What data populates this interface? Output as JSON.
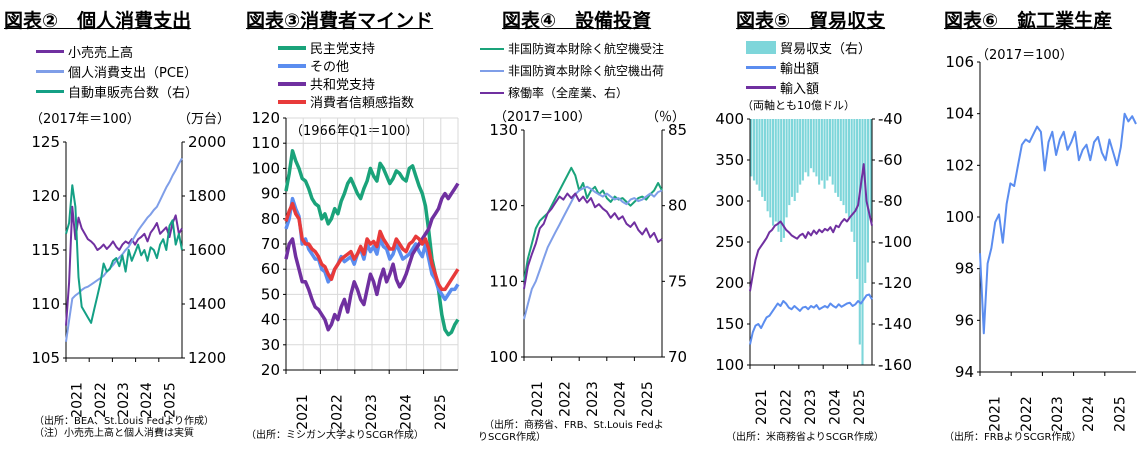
{
  "panels": [
    {
      "title": "図表②　個人消費支出",
      "source_lines": [
        "（出所：BEA、St.Louis Fedより作成）",
        "（注）小売売上高と個人消費は実質"
      ],
      "unit_left": "（2017年＝100）",
      "unit_right": "（万台）",
      "chart_data": {
        "type": "line",
        "x_labels": [
          "2021",
          "2022",
          "2023",
          "2024",
          "2025"
        ],
        "ylim_left": [
          105,
          125
        ],
        "yticks_left": [
          "105",
          "110",
          "115",
          "120",
          "125"
        ],
        "ylim_right": [
          1200,
          2000
        ],
        "yticks_right": [
          "1200",
          "1400",
          "1600",
          "1800",
          "2000"
        ],
        "series": [
          {
            "name": "小売売上高",
            "color": "#7030A0",
            "axis": "left",
            "values": [
              108,
              112,
              119,
              116,
              118,
              117,
              116.5,
              116,
              115.8,
              115.5,
              115,
              115.2,
              115.5,
              115.1,
              115.4,
              115.8,
              115.3,
              115,
              115.5,
              115.8,
              115.6,
              116,
              115.5,
              116,
              116.2,
              116.5,
              115.8,
              116.6,
              117,
              117.5,
              116.5,
              116.8,
              117.1,
              116.2,
              117.5,
              118.2,
              116.5,
              117
            ]
          },
          {
            "name": "個人消費支出（PCE）",
            "color": "#7F9EE8",
            "axis": "left",
            "values": [
              106.5,
              108.5,
              110.5,
              110.8,
              111,
              111.3,
              111.5,
              111.6,
              111.8,
              112,
              112.2,
              112.4,
              112.6,
              113,
              113.3,
              113.6,
              114,
              114.3,
              114.6,
              115,
              115.3,
              115.8,
              116.3,
              116.8,
              117.2,
              117.6,
              118,
              118.3,
              118.7,
              119,
              119.6,
              120.2,
              120.8,
              121.3,
              121.9,
              122.4,
              123,
              123.5
            ]
          },
          {
            "name": "自動車販売台数（右）",
            "color": "#14A085",
            "axis": "right",
            "values": [
              1660,
              1700,
              1840,
              1760,
              1500,
              1390,
              1370,
              1350,
              1330,
              1380,
              1430,
              1480,
              1550,
              1520,
              1530,
              1560,
              1570,
              1540,
              1580,
              1520,
              1600,
              1560,
              1590,
              1620,
              1580,
              1600,
              1560,
              1610,
              1600,
              1570,
              1620,
              1640,
              1600,
              1690,
              1710,
              1620,
              1660,
              1600
            ]
          }
        ]
      }
    },
    {
      "title": "図表③消費者マインド",
      "source_lines": [
        "（出所：ミシガン大学よりSCGR作成）"
      ],
      "unit_left": "（1966年Q1＝100）",
      "chart_data": {
        "type": "line",
        "x_labels": [
          "2021",
          "2022",
          "2023",
          "2024",
          "2025"
        ],
        "ylim_left": [
          20,
          120
        ],
        "yticks_left": [
          "20",
          "30",
          "40",
          "50",
          "60",
          "70",
          "80",
          "90",
          "100",
          "110",
          "120"
        ],
        "series": [
          {
            "name": "民主党支持",
            "color": "#1AA37A",
            "values": [
              91,
              98,
              107,
              103,
              100,
              96,
              95,
              92,
              88,
              86,
              85,
              80,
              82,
              78,
              80,
              84,
              82,
              87,
              90,
              94,
              96,
              93,
              90,
              88,
              92,
              95,
              100,
              97,
              95,
              102,
              100,
              97,
              94,
              96,
              99,
              98,
              96,
              95,
              100,
              101,
              97,
              93,
              90,
              85,
              75,
              64,
              58,
              52,
              42,
              36,
              34,
              35,
              38,
              40
            ]
          },
          {
            "name": "その他",
            "color": "#5B8DEF",
            "values": [
              76,
              80,
              88,
              84,
              81,
              70,
              72,
              68,
              66,
              64,
              64,
              60,
              59,
              55,
              57,
              60,
              62,
              65,
              63,
              64,
              65,
              62,
              66,
              68,
              64,
              70,
              67,
              69,
              66,
              72,
              69,
              68,
              64,
              66,
              70,
              67,
              64,
              65,
              66,
              68,
              70,
              67,
              65,
              70,
              64,
              58,
              56,
              52,
              50,
              48,
              50,
              52,
              52,
              54
            ]
          },
          {
            "name": "共和党支持",
            "color": "#7030A0",
            "values": [
              64,
              70,
              72,
              65,
              60,
              55,
              55,
              52,
              48,
              45,
              44,
              42,
              40,
              36,
              38,
              42,
              40,
              45,
              48,
              43,
              50,
              55,
              52,
              48,
              46,
              52,
              58,
              55,
              50,
              56,
              60,
              55,
              58,
              62,
              56,
              53,
              55,
              58,
              62,
              66,
              68,
              70,
              72,
              74,
              76,
              80,
              82,
              84,
              88,
              90,
              88,
              90,
              92,
              94
            ]
          },
          {
            "name": "消費者信頼感指数",
            "color": "#E83A3A",
            "values": [
              79,
              83,
              86,
              82,
              80,
              72,
              70,
              70,
              68,
              67,
              65,
              62,
              61,
              58,
              56,
              60,
              62,
              64,
              65,
              66,
              67,
              64,
              66,
              69,
              66,
              72,
              70,
              71,
              69,
              75,
              72,
              70,
              68,
              68,
              72,
              70,
              68,
              67,
              70,
              71,
              73,
              72,
              70,
              72,
              68,
              62,
              58,
              54,
              52,
              52,
              54,
              56,
              58,
              60
            ]
          }
        ]
      }
    },
    {
      "title": "図表④　設備投資",
      "source_lines": [
        "（出所：商務省、FRB、St.Louis Fedよ",
        "りSCGR作成）"
      ],
      "unit_left": "（2017＝100）",
      "unit_right": "（％）",
      "chart_data": {
        "type": "line",
        "x_labels": [
          "2021",
          "2022",
          "2023",
          "2024",
          "2025"
        ],
        "ylim_left": [
          100,
          130
        ],
        "yticks_left": [
          "100",
          "110",
          "120",
          "130"
        ],
        "ylim_right": [
          70,
          85
        ],
        "yticks_right": [
          "70",
          "75",
          "80",
          "85"
        ],
        "series": [
          {
            "name": "非国防資本財除く航空機受注",
            "color": "#1AA37A",
            "axis": "left",
            "values": [
              110,
              113,
              115,
              117,
              118,
              118.5,
              119,
              120,
              121,
              122,
              123,
              124,
              125,
              124,
              122,
              123,
              121,
              122,
              122.5,
              121.5,
              122,
              121,
              120.5,
              121.2,
              120.8,
              121,
              120.5,
              120,
              120.5,
              121,
              121.2,
              120.8,
              121.5,
              122,
              123,
              122
            ]
          },
          {
            "name": "非国防資本財除く航空機出荷",
            "color": "#7F9EE8",
            "axis": "left",
            "values": [
              105,
              107,
              109,
              110,
              111.5,
              113,
              114.5,
              115.5,
              116.5,
              117.5,
              118.5,
              119.5,
              120.5,
              121.5,
              122,
              122.3,
              122.5,
              122.2,
              121.8,
              121.5,
              121.2,
              121.6,
              121.2,
              120.8,
              121,
              120.5,
              120.2,
              120.8,
              121,
              120.6,
              120.8,
              121.2,
              121.6,
              121.2,
              121.8,
              122
            ]
          },
          {
            "name": "稼働率（全産業、右）",
            "color": "#7030A0",
            "axis": "right",
            "values": [
              74.5,
              76,
              76.8,
              77.5,
              78.5,
              78.8,
              79.5,
              79.8,
              80.2,
              80.6,
              80.4,
              80.8,
              80.5,
              80.8,
              80.3,
              80.6,
              80.2,
              80.5,
              79.9,
              80.1,
              79.8,
              79.6,
              79.2,
              79.5,
              79.1,
              79.3,
              78.8,
              78.6,
              78.9,
              78.4,
              78.1,
              78.5,
              77.9,
              78.2,
              77.6,
              77.8
            ]
          }
        ]
      }
    },
    {
      "title": "図表⑤　貿易収支",
      "source_lines": [
        "（出所：米商務省よりSCGR作成）"
      ],
      "unit_left": "（両軸とも10億ドル）",
      "chart_data": {
        "type": "bar+line",
        "x_labels": [
          "2021",
          "2022",
          "2023",
          "2024",
          "2025"
        ],
        "ylim_left": [
          100,
          400
        ],
        "yticks_left": [
          "100",
          "150",
          "200",
          "250",
          "300",
          "350",
          "400"
        ],
        "ylim_right": [
          -160,
          -40
        ],
        "yticks_right": [
          "-40",
          "-60",
          "-80",
          "-100",
          "-120",
          "-140",
          "-160"
        ],
        "series": [
          {
            "name": "貿易収支（右）",
            "color": "#7ED6DA",
            "axis": "right",
            "kind": "bar",
            "values": [
              -68,
              -70,
              -72,
              -75,
              -78,
              -80,
              -85,
              -88,
              -92,
              -90,
              -95,
              -100,
              -98,
              -88,
              -82,
              -78,
              -80,
              -76,
              -72,
              -70,
              -66,
              -68,
              -64,
              -66,
              -68,
              -72,
              -70,
              -74,
              -70,
              -68,
              -72,
              -76,
              -78,
              -80,
              -82,
              -86,
              -88,
              -95,
              -100,
              -118,
              -150,
              -160,
              -120,
              -110,
              -88
            ]
          },
          {
            "name": "輸出額",
            "color": "#5B8DEF",
            "axis": "left",
            "kind": "line",
            "values": [
              125,
              140,
              148,
              150,
              145,
              152,
              158,
              160,
              165,
              170,
              175,
              172,
              178,
              175,
              170,
              168,
              172,
              169,
              166,
              170,
              171,
              168,
              172,
              170,
              173,
              168,
              170,
              172,
              170,
              175,
              172,
              170,
              174,
              171,
              173,
              175,
              176,
              172,
              174,
              178,
              175,
              180,
              185,
              186,
              180
            ]
          },
          {
            "name": "輸入額",
            "color": "#7030A0",
            "axis": "left",
            "kind": "line",
            "values": [
              190,
              210,
              228,
              240,
              245,
              250,
              255,
              262,
              265,
              270,
              272,
              275,
              270,
              265,
              262,
              258,
              256,
              254,
              258,
              260,
              255,
              262,
              258,
              264,
              260,
              265,
              262,
              266,
              264,
              268,
              262,
              270,
              268,
              274,
              278,
              275,
              280,
              284,
              288,
              295,
              320,
              345,
              300,
              285,
              270
            ]
          }
        ]
      }
    },
    {
      "title": "図表⑥　鉱工業生産",
      "source_lines": [
        "（出所：FRBよりSCGR作成）"
      ],
      "unit_left": "（2017＝100）",
      "chart_data": {
        "type": "line",
        "x_labels": [
          "2021",
          "2022",
          "2023",
          "2024",
          "2025"
        ],
        "ylim_left": [
          94,
          106
        ],
        "yticks_left": [
          "94",
          "96",
          "98",
          "100",
          "102",
          "104",
          "106"
        ],
        "series": [
          {
            "name": "鉱工業生産",
            "color": "#5B8DEF",
            "values": [
              98.6,
              95.5,
              98.2,
              98.8,
              99.8,
              100.1,
              99.0,
              100.5,
              101.3,
              101.2,
              102.0,
              102.8,
              103.0,
              102.9,
              103.2,
              103.5,
              103.3,
              101.8,
              102.9,
              103.3,
              102.4,
              103.0,
              103.3,
              102.6,
              102.9,
              103.3,
              102.2,
              102.6,
              102.8,
              102.2,
              102.9,
              103.1,
              102.5,
              102.2,
              103.0,
              102.5,
              102.0,
              102.7,
              104.0,
              103.7,
              103.9,
              103.6
            ]
          }
        ]
      }
    }
  ]
}
